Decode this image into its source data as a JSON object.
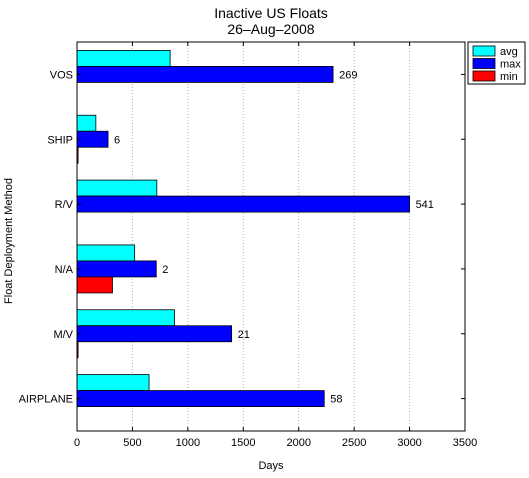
{
  "chart_data": {
    "type": "bar",
    "orientation": "horizontal",
    "title": "Inactive US Floats",
    "subtitle": "26–Aug–2008",
    "xlabel": "Days",
    "ylabel": "Float Deployment Method",
    "xlim": [
      0,
      3500
    ],
    "xticks": [
      0,
      500,
      1000,
      1500,
      2000,
      2500,
      3000,
      3500
    ],
    "grid": "vertical dotted",
    "legend_position": "top-right",
    "categories": [
      "VOS",
      "SHIP",
      "R/V",
      "N/A",
      "M/V",
      "AIRPLANE"
    ],
    "series": [
      {
        "name": "avg",
        "color": "#00ffff",
        "values": [
          840,
          170,
          720,
          520,
          880,
          650
        ]
      },
      {
        "name": "max",
        "color": "#0000ff",
        "values": [
          2310,
          280,
          3000,
          715,
          1395,
          2230
        ]
      },
      {
        "name": "min",
        "color": "#ff0000",
        "values": [
          0,
          10,
          0,
          320,
          10,
          0
        ]
      }
    ],
    "counts": [
      "269",
      "6",
      "541",
      "2",
      "21",
      "58"
    ]
  }
}
